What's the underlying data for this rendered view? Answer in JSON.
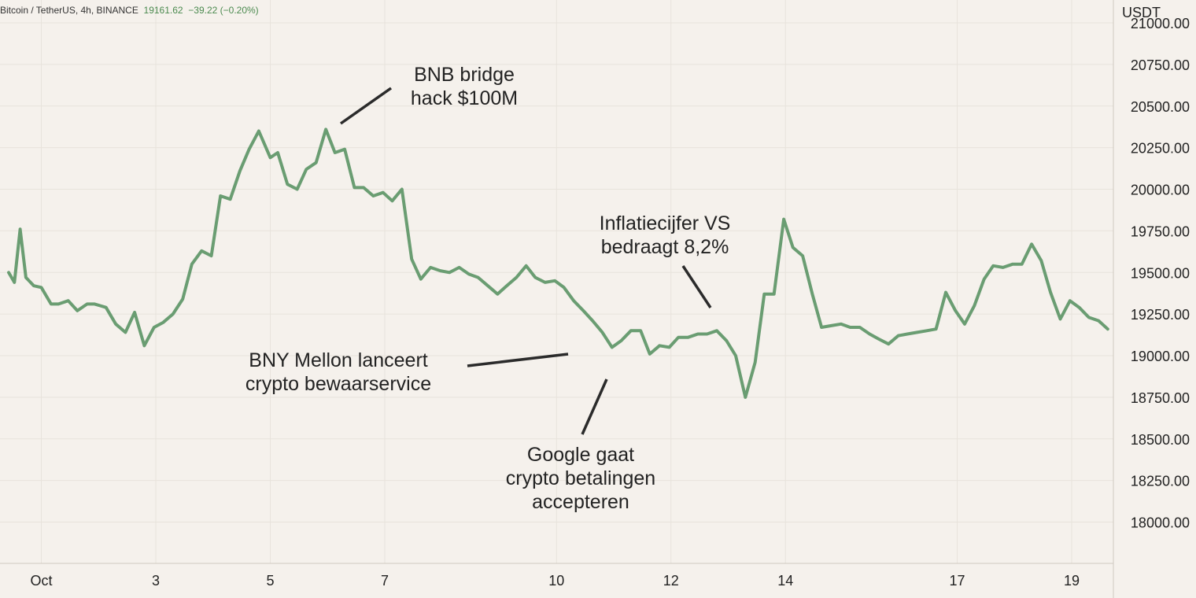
{
  "header": {
    "symbol": "Bitcoin / TetherUS, 4h, BINANCE",
    "price": "19161.62",
    "change": "−39.22 (−0.20%)",
    "unit": "USDT"
  },
  "colors": {
    "line": "#6a9d72",
    "background": "#f5f1ec",
    "grid": "#e8e3dc",
    "positive": "#4b8a4f"
  },
  "chart_data": {
    "type": "line",
    "title": "",
    "xlabel": "",
    "ylabel": "USDT",
    "grid": true,
    "ylim": [
      17750,
      21050
    ],
    "y_ticks": [
      18000,
      18250,
      18500,
      18750,
      19000,
      19250,
      19500,
      19750,
      20000,
      20250,
      20500,
      20750,
      21000
    ],
    "y_tick_labels": [
      "18000.00",
      "18250.00",
      "18500.00",
      "18750.00",
      "19000.00",
      "19250.00",
      "19500.00",
      "19750.00",
      "20000.00",
      "20250.00",
      "20500.00",
      "20750.00",
      "21000.00"
    ],
    "x_ticks": [
      {
        "label": "Oct",
        "day": 1
      },
      {
        "label": "3",
        "day": 3
      },
      {
        "label": "5",
        "day": 5
      },
      {
        "label": "7",
        "day": 7
      },
      {
        "label": "10",
        "day": 10
      },
      {
        "label": "12",
        "day": 12
      },
      {
        "label": "14",
        "day": 14
      },
      {
        "label": "17",
        "day": 17
      },
      {
        "label": "19",
        "day": 19
      }
    ],
    "series": [
      {
        "name": "",
        "points": [
          [
            0.43,
            19500
          ],
          [
            0.53,
            19440
          ],
          [
            0.63,
            19760
          ],
          [
            0.73,
            19470
          ],
          [
            0.87,
            19420
          ],
          [
            1.0,
            19410
          ],
          [
            1.17,
            19310
          ],
          [
            1.3,
            19310
          ],
          [
            1.47,
            19330
          ],
          [
            1.63,
            19270
          ],
          [
            1.8,
            19310
          ],
          [
            1.93,
            19310
          ],
          [
            2.13,
            19290
          ],
          [
            2.3,
            19190
          ],
          [
            2.47,
            19140
          ],
          [
            2.63,
            19260
          ],
          [
            2.8,
            19060
          ],
          [
            2.97,
            19170
          ],
          [
            3.13,
            19200
          ],
          [
            3.3,
            19250
          ],
          [
            3.47,
            19340
          ],
          [
            3.63,
            19550
          ],
          [
            3.8,
            19630
          ],
          [
            3.97,
            19600
          ],
          [
            4.13,
            19960
          ],
          [
            4.3,
            19940
          ],
          [
            4.47,
            20110
          ],
          [
            4.63,
            20240
          ],
          [
            4.8,
            20350
          ],
          [
            5.0,
            20190
          ],
          [
            5.13,
            20220
          ],
          [
            5.3,
            20030
          ],
          [
            5.47,
            20000
          ],
          [
            5.63,
            20120
          ],
          [
            5.8,
            20160
          ],
          [
            5.97,
            20360
          ],
          [
            6.13,
            20220
          ],
          [
            6.3,
            20240
          ],
          [
            6.47,
            20010
          ],
          [
            6.63,
            20010
          ],
          [
            6.8,
            19960
          ],
          [
            6.97,
            19980
          ],
          [
            7.13,
            19930
          ],
          [
            7.3,
            20000
          ],
          [
            7.47,
            19580
          ],
          [
            7.63,
            19460
          ],
          [
            7.8,
            19530
          ],
          [
            7.97,
            19510
          ],
          [
            8.13,
            19500
          ],
          [
            8.3,
            19530
          ],
          [
            8.47,
            19490
          ],
          [
            8.63,
            19470
          ],
          [
            8.8,
            19420
          ],
          [
            8.97,
            19370
          ],
          [
            9.13,
            19420
          ],
          [
            9.3,
            19470
          ],
          [
            9.47,
            19540
          ],
          [
            9.63,
            19470
          ],
          [
            9.8,
            19440
          ],
          [
            9.97,
            19450
          ],
          [
            10.13,
            19410
          ],
          [
            10.3,
            19330
          ],
          [
            10.47,
            19270
          ],
          [
            10.63,
            19210
          ],
          [
            10.8,
            19140
          ],
          [
            10.97,
            19050
          ],
          [
            11.13,
            19090
          ],
          [
            11.3,
            19150
          ],
          [
            11.47,
            19150
          ],
          [
            11.63,
            19010
          ],
          [
            11.8,
            19060
          ],
          [
            11.97,
            19050
          ],
          [
            12.13,
            19110
          ],
          [
            12.3,
            19110
          ],
          [
            12.47,
            19130
          ],
          [
            12.63,
            19130
          ],
          [
            12.8,
            19150
          ],
          [
            12.97,
            19090
          ],
          [
            13.13,
            19000
          ],
          [
            13.3,
            18750
          ],
          [
            13.47,
            18960
          ],
          [
            13.63,
            19370
          ],
          [
            13.8,
            19370
          ],
          [
            13.97,
            19820
          ],
          [
            14.13,
            19650
          ],
          [
            14.3,
            19600
          ],
          [
            14.47,
            19370
          ],
          [
            14.63,
            19170
          ],
          [
            14.8,
            19180
          ],
          [
            14.97,
            19190
          ],
          [
            15.13,
            19170
          ],
          [
            15.3,
            19170
          ],
          [
            15.47,
            19130
          ],
          [
            15.63,
            19100
          ],
          [
            15.8,
            19070
          ],
          [
            15.97,
            19120
          ],
          [
            16.13,
            19130
          ],
          [
            16.3,
            19140
          ],
          [
            16.47,
            19150
          ],
          [
            16.63,
            19160
          ],
          [
            16.8,
            19380
          ],
          [
            16.97,
            19270
          ],
          [
            17.13,
            19190
          ],
          [
            17.3,
            19300
          ],
          [
            17.47,
            19460
          ],
          [
            17.63,
            19540
          ],
          [
            17.8,
            19530
          ],
          [
            17.97,
            19550
          ],
          [
            18.13,
            19550
          ],
          [
            18.3,
            19670
          ],
          [
            18.47,
            19570
          ],
          [
            18.63,
            19380
          ],
          [
            18.8,
            19220
          ],
          [
            18.97,
            19330
          ],
          [
            19.13,
            19290
          ],
          [
            19.3,
            19230
          ],
          [
            19.47,
            19210
          ],
          [
            19.63,
            19160
          ]
        ]
      }
    ],
    "annotations": [
      {
        "id": "bnb",
        "lines": [
          "BNB bridge",
          "hack $100M"
        ]
      },
      {
        "id": "inflatie",
        "lines": [
          "Inflatiecijfer VS",
          "bedraagt 8,2%"
        ]
      },
      {
        "id": "bny",
        "lines": [
          "BNY Mellon lanceert",
          "crypto bewaarservice"
        ]
      },
      {
        "id": "google",
        "lines": [
          "Google gaat",
          "crypto betalingen",
          "accepteren"
        ]
      }
    ]
  }
}
